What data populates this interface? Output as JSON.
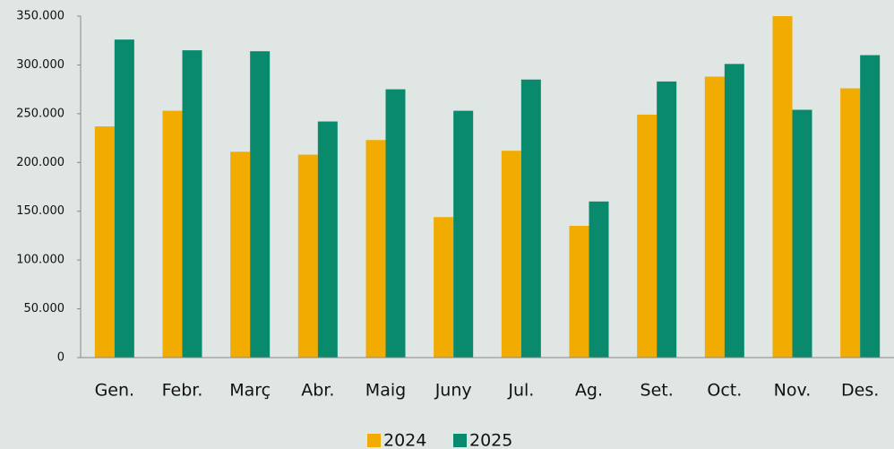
{
  "chart_data": {
    "type": "bar",
    "categories": [
      "Gen.",
      "Febr.",
      "Març",
      "Abr.",
      "Maig",
      "Juny",
      "Jul.",
      "Ag.",
      "Set.",
      "Oct.",
      "Nov.",
      "Des."
    ],
    "series": [
      {
        "name": "2024",
        "color": "#f2ab00",
        "values": [
          237000,
          253000,
          211000,
          208000,
          223000,
          144000,
          212000,
          135000,
          249000,
          288000,
          350000,
          276000
        ]
      },
      {
        "name": "2025",
        "color": "#0a8a6c",
        "values": [
          326000,
          315000,
          314000,
          242000,
          275000,
          253000,
          285000,
          160000,
          283000,
          301000,
          254000,
          310000
        ]
      }
    ],
    "ylim": [
      0,
      350000
    ],
    "yticks": [
      0,
      {
        "value": 50000,
        "label": "50.000"
      },
      {
        "value": 100000,
        "label": "100.000"
      },
      {
        "value": 150000,
        "label": "150.000"
      },
      {
        "value": 200000,
        "label": "200.000"
      },
      {
        "value": 250000,
        "label": "250.000"
      },
      {
        "value": 300000,
        "label": "300.000"
      },
      {
        "value": 350000,
        "label": "350.000"
      }
    ],
    "legend": "bottom"
  }
}
